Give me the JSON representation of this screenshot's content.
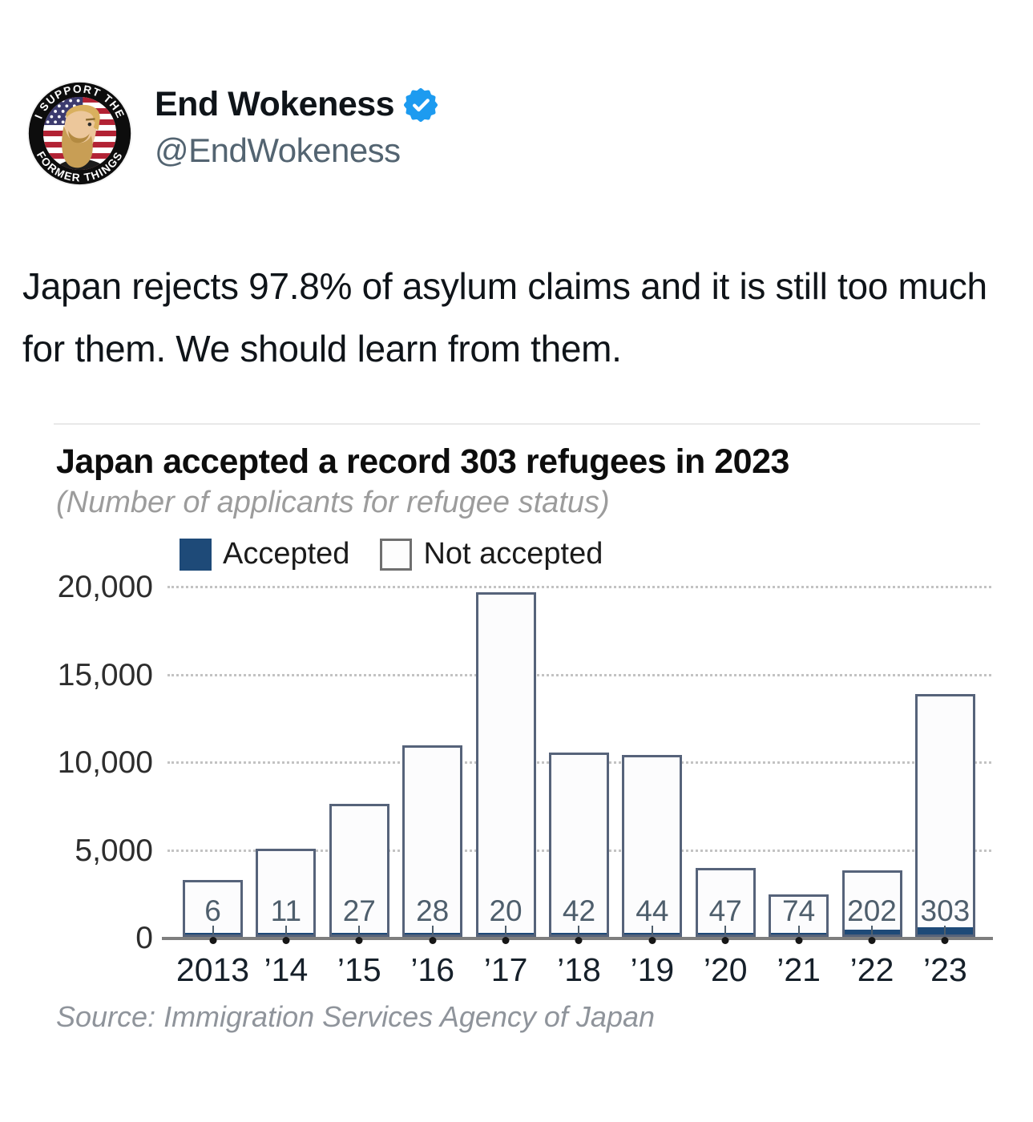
{
  "tweet": {
    "display_name": "End Wokeness",
    "handle": "@EndWokeness",
    "verified": true,
    "verified_color": "#1d9bf0",
    "avatar_top_text": "I SUPPORT THE",
    "avatar_bottom_text": "FORMER THINGS",
    "body": "Japan rejects 97.8% of asylum claims and it is still too much for them. We should learn from them."
  },
  "chart": {
    "title": "Japan accepted a record 303 refugees in 2023",
    "subtitle": "(Number of applicants for refugee status)",
    "legend_accepted": "Accepted",
    "legend_not_accepted": "Not accepted",
    "source": "Source: Immigration Services Agency of Japan",
    "accepted_color": "#1e4a78",
    "bar_border_color": "#56637a",
    "axis_color": "#7f7f7f"
  },
  "chart_data": {
    "type": "bar",
    "stacked": true,
    "title": "Japan accepted a record 303 refugees in 2023",
    "subtitle": "(Number of applicants for refugee status)",
    "categories": [
      "2013",
      "’14",
      "’15",
      "’16",
      "’17",
      "’18",
      "’19",
      "’20",
      "’21",
      "’22",
      "’23"
    ],
    "series": [
      {
        "name": "Accepted",
        "values": [
          6,
          11,
          27,
          28,
          20,
          42,
          44,
          47,
          74,
          202,
          303
        ]
      },
      {
        "name": "Not accepted",
        "values": [
          3254,
          4989,
          7563,
          10872,
          19610,
          10448,
          10336,
          3893,
          2336,
          3568,
          13517
        ]
      }
    ],
    "totals_estimated": [
      3260,
      5000,
      7590,
      10900,
      19630,
      10490,
      10380,
      3940,
      2410,
      3770,
      13820
    ],
    "bar_labels": [
      "6",
      "11",
      "27",
      "28",
      "20",
      "42",
      "44",
      "47",
      "74",
      "202",
      "303"
    ],
    "xlabel": "",
    "ylabel": "",
    "yticks": [
      0,
      5000,
      10000,
      15000,
      20000
    ],
    "ytick_labels": [
      "0",
      "5,000",
      "10,000",
      "15,000",
      "20,000"
    ],
    "ylim": [
      0,
      20000
    ],
    "grid": "dotted horizontal",
    "legend_position": "top-left above plot"
  }
}
